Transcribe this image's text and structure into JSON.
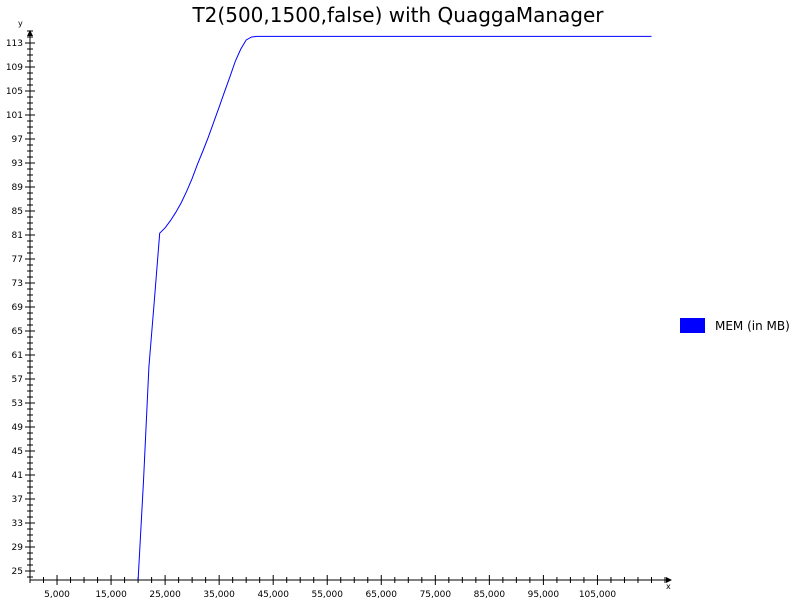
{
  "chart_data": {
    "type": "line",
    "title": "T2(500,1500,false) with QuaggaManager",
    "xlabel": "x",
    "ylabel": "y",
    "xlim": [
      0,
      117500
    ],
    "ylim": [
      23.5,
      115
    ],
    "x_ticks": [
      5000,
      15000,
      25000,
      35000,
      45000,
      55000,
      65000,
      75000,
      85000,
      95000,
      105000
    ],
    "x_tick_labels": [
      "5,000",
      "15,000",
      "25,000",
      "35,000",
      "45,000",
      "55,000",
      "65,000",
      "75,000",
      "85,000",
      "95,000",
      "105,000"
    ],
    "y_ticks": [
      25,
      29,
      33,
      37,
      41,
      45,
      49,
      53,
      57,
      61,
      65,
      69,
      73,
      77,
      81,
      85,
      89,
      93,
      97,
      101,
      105,
      109,
      113
    ],
    "grid": false,
    "legend_position": "right",
    "series": [
      {
        "name": "MEM (in MB)",
        "color": "#0000ff",
        "x": [
          20000,
          21000,
          22000,
          23000,
          24000,
          25000,
          26000,
          27000,
          28000,
          29000,
          30000,
          31000,
          32000,
          33000,
          34000,
          35000,
          36000,
          37000,
          38000,
          39000,
          40000,
          41000,
          42000,
          45000,
          60000,
          80000,
          100000,
          115000
        ],
        "y": [
          23.5,
          40,
          59,
          70,
          81.3,
          82.2,
          83.4,
          84.8,
          86.4,
          88.3,
          90.4,
          92.8,
          95.0,
          97.3,
          99.8,
          102.3,
          104.9,
          107.4,
          110.0,
          112.0,
          113.5,
          114.0,
          114.1,
          114.1,
          114.1,
          114.1,
          114.1,
          114.1
        ]
      }
    ]
  }
}
